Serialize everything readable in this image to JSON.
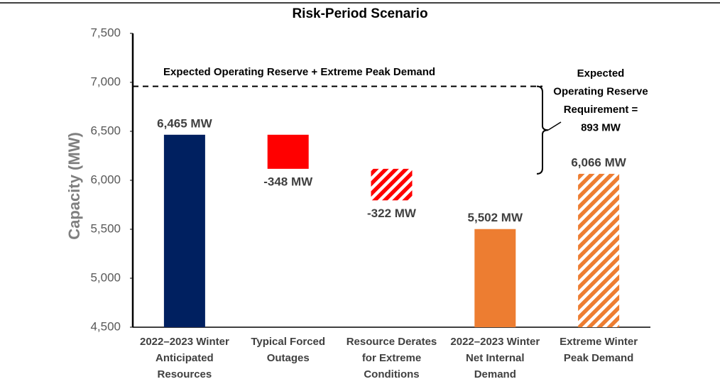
{
  "chart_data": {
    "type": "waterfall",
    "title": "Risk-Period Scenario",
    "y_label": "Capacity (MW)",
    "categories": [
      [
        "2022–2023 Winter",
        "Anticipated",
        "Resources"
      ],
      [
        "Typical Forced",
        "Outages"
      ],
      [
        "Resource Derates",
        "for Extreme",
        "Conditions"
      ],
      [
        "2022–2023 Winter",
        "Net Internal",
        "Demand"
      ],
      [
        "Extreme Winter",
        "Peak Demand"
      ]
    ],
    "values": [
      6465,
      -348,
      -322,
      5502,
      6066
    ],
    "value_labels": [
      "6,465 MW",
      "-348 MW",
      "-322 MW",
      "5,502 MW",
      "6,066 MW"
    ],
    "measure": [
      "absolute",
      "relative",
      "relative",
      "absolute",
      "absolute"
    ],
    "colors": [
      "#002060",
      "#ff0000",
      "#ff0000",
      "#ed7d31",
      "#ed7d31"
    ],
    "hatched": [
      false,
      false,
      true,
      false,
      true
    ],
    "ylim": [
      4500,
      7500
    ],
    "yticks": [
      {
        "value": 4500,
        "label": "4,500"
      },
      {
        "value": 5000,
        "label": "5,000"
      },
      {
        "value": 5500,
        "label": "5,500"
      },
      {
        "value": 6000,
        "label": "6,000"
      },
      {
        "value": 6500,
        "label": "6,500"
      },
      {
        "value": 7000,
        "label": "7,000"
      },
      {
        "value": 7500,
        "label": "7,500"
      }
    ],
    "grid": false,
    "reference_line": {
      "value": 6959,
      "label": "Expected Operating Reserve + Extreme Peak Demand"
    },
    "bracket_label": [
      "Expected",
      "Operating Reserve",
      "Requirement =",
      "893 MW"
    ]
  }
}
